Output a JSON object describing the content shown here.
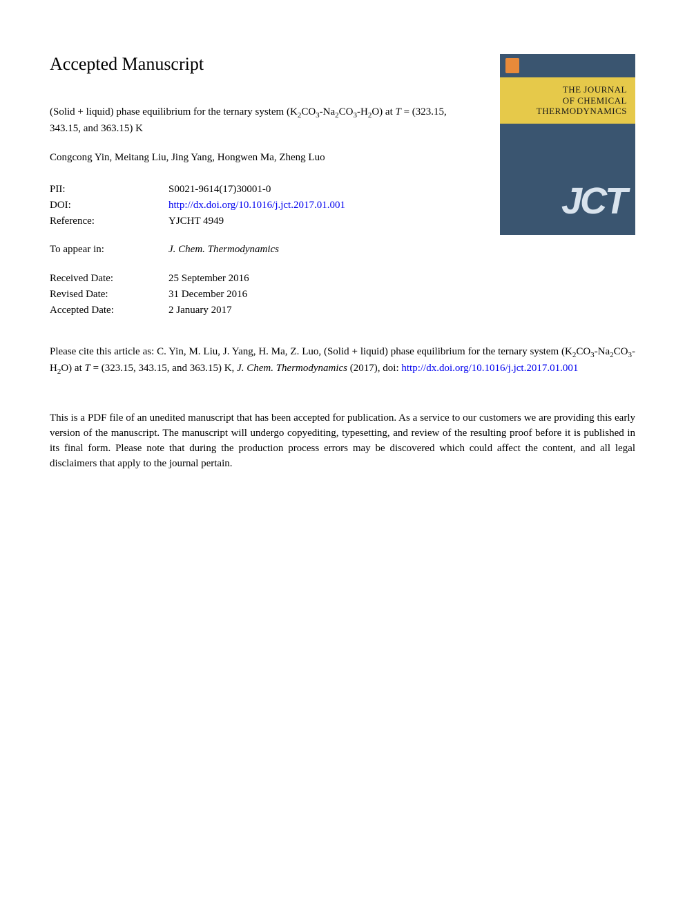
{
  "header": "Accepted Manuscript",
  "cover": {
    "background_color": "#3a5570",
    "band_color": "#e6c94a",
    "logo_color": "#d9e3ed",
    "line1": "THE JOURNAL",
    "line2": "OF CHEMICAL",
    "line3": "THERMODYNAMICS",
    "logo": "JCT"
  },
  "title": {
    "prefix": "(Solid + liquid) phase equilibrium for the ternary system (K",
    "s1": "2",
    "m1": "CO",
    "s2": "3",
    "m2": "-Na",
    "s3": "2",
    "m3": "CO",
    "s4": "3",
    "m4": "-H",
    "s5": "2",
    "m5": "O) at ",
    "tvar": "T",
    "suffix": " = (323.15, 343.15, and 363.15) K"
  },
  "authors": "Congcong Yin, Meitang Liu, Jing Yang, Hongwen Ma, Zheng Luo",
  "meta": {
    "pii_label": "PII:",
    "pii_value": "S0021-9614(17)30001-0",
    "doi_label": "DOI:",
    "doi_value": "http://dx.doi.org/10.1016/j.jct.2017.01.001",
    "ref_label": "Reference:",
    "ref_value": "YJCHT 4949",
    "appear_label": "To appear in:",
    "appear_value": "J. Chem. Thermodynamics",
    "recv_label": "Received Date:",
    "recv_value": "25 September 2016",
    "rev_label": "Revised Date:",
    "rev_value": "31 December 2016",
    "acc_label": "Accepted Date:",
    "acc_value": "2 January 2017"
  },
  "citation": {
    "p1": "Please cite this article as: C. Yin, M. Liu, J. Yang, H. Ma, Z. Luo, (Solid + liquid) phase equilibrium for the ternary system (K",
    "s1": "2",
    "m1": "CO",
    "s2": "3",
    "m2": "-Na",
    "s3": "2",
    "m3": "CO",
    "s4": "3",
    "m4": "-H",
    "s5": "2",
    "m5": "O) at ",
    "tvar": "T",
    "p2": " = (323.15, 343.15, and 363.15) K, ",
    "journal": "J. Chem. Thermodynamics",
    "p3": " (2017), doi: ",
    "link1": "http://",
    "link2": "dx.doi.org/10.1016/j.jct.2017.01.001"
  },
  "disclaimer": "This is a PDF file of an unedited manuscript that has been accepted for publication. As a service to our customers we are providing this early version of the manuscript. The manuscript will undergo copyediting, typesetting, and review of the resulting proof before it is published in its final form. Please note that during the production process errors may be discovered which could affect the content, and all legal disclaimers that apply to the journal pertain.",
  "colors": {
    "text": "#000000",
    "link": "#0000ee",
    "background": "#ffffff"
  },
  "typography": {
    "header_fontsize": 26,
    "body_fontsize": 15,
    "subscript_fontsize": 11,
    "font_family": "Georgia, Times New Roman, serif"
  }
}
